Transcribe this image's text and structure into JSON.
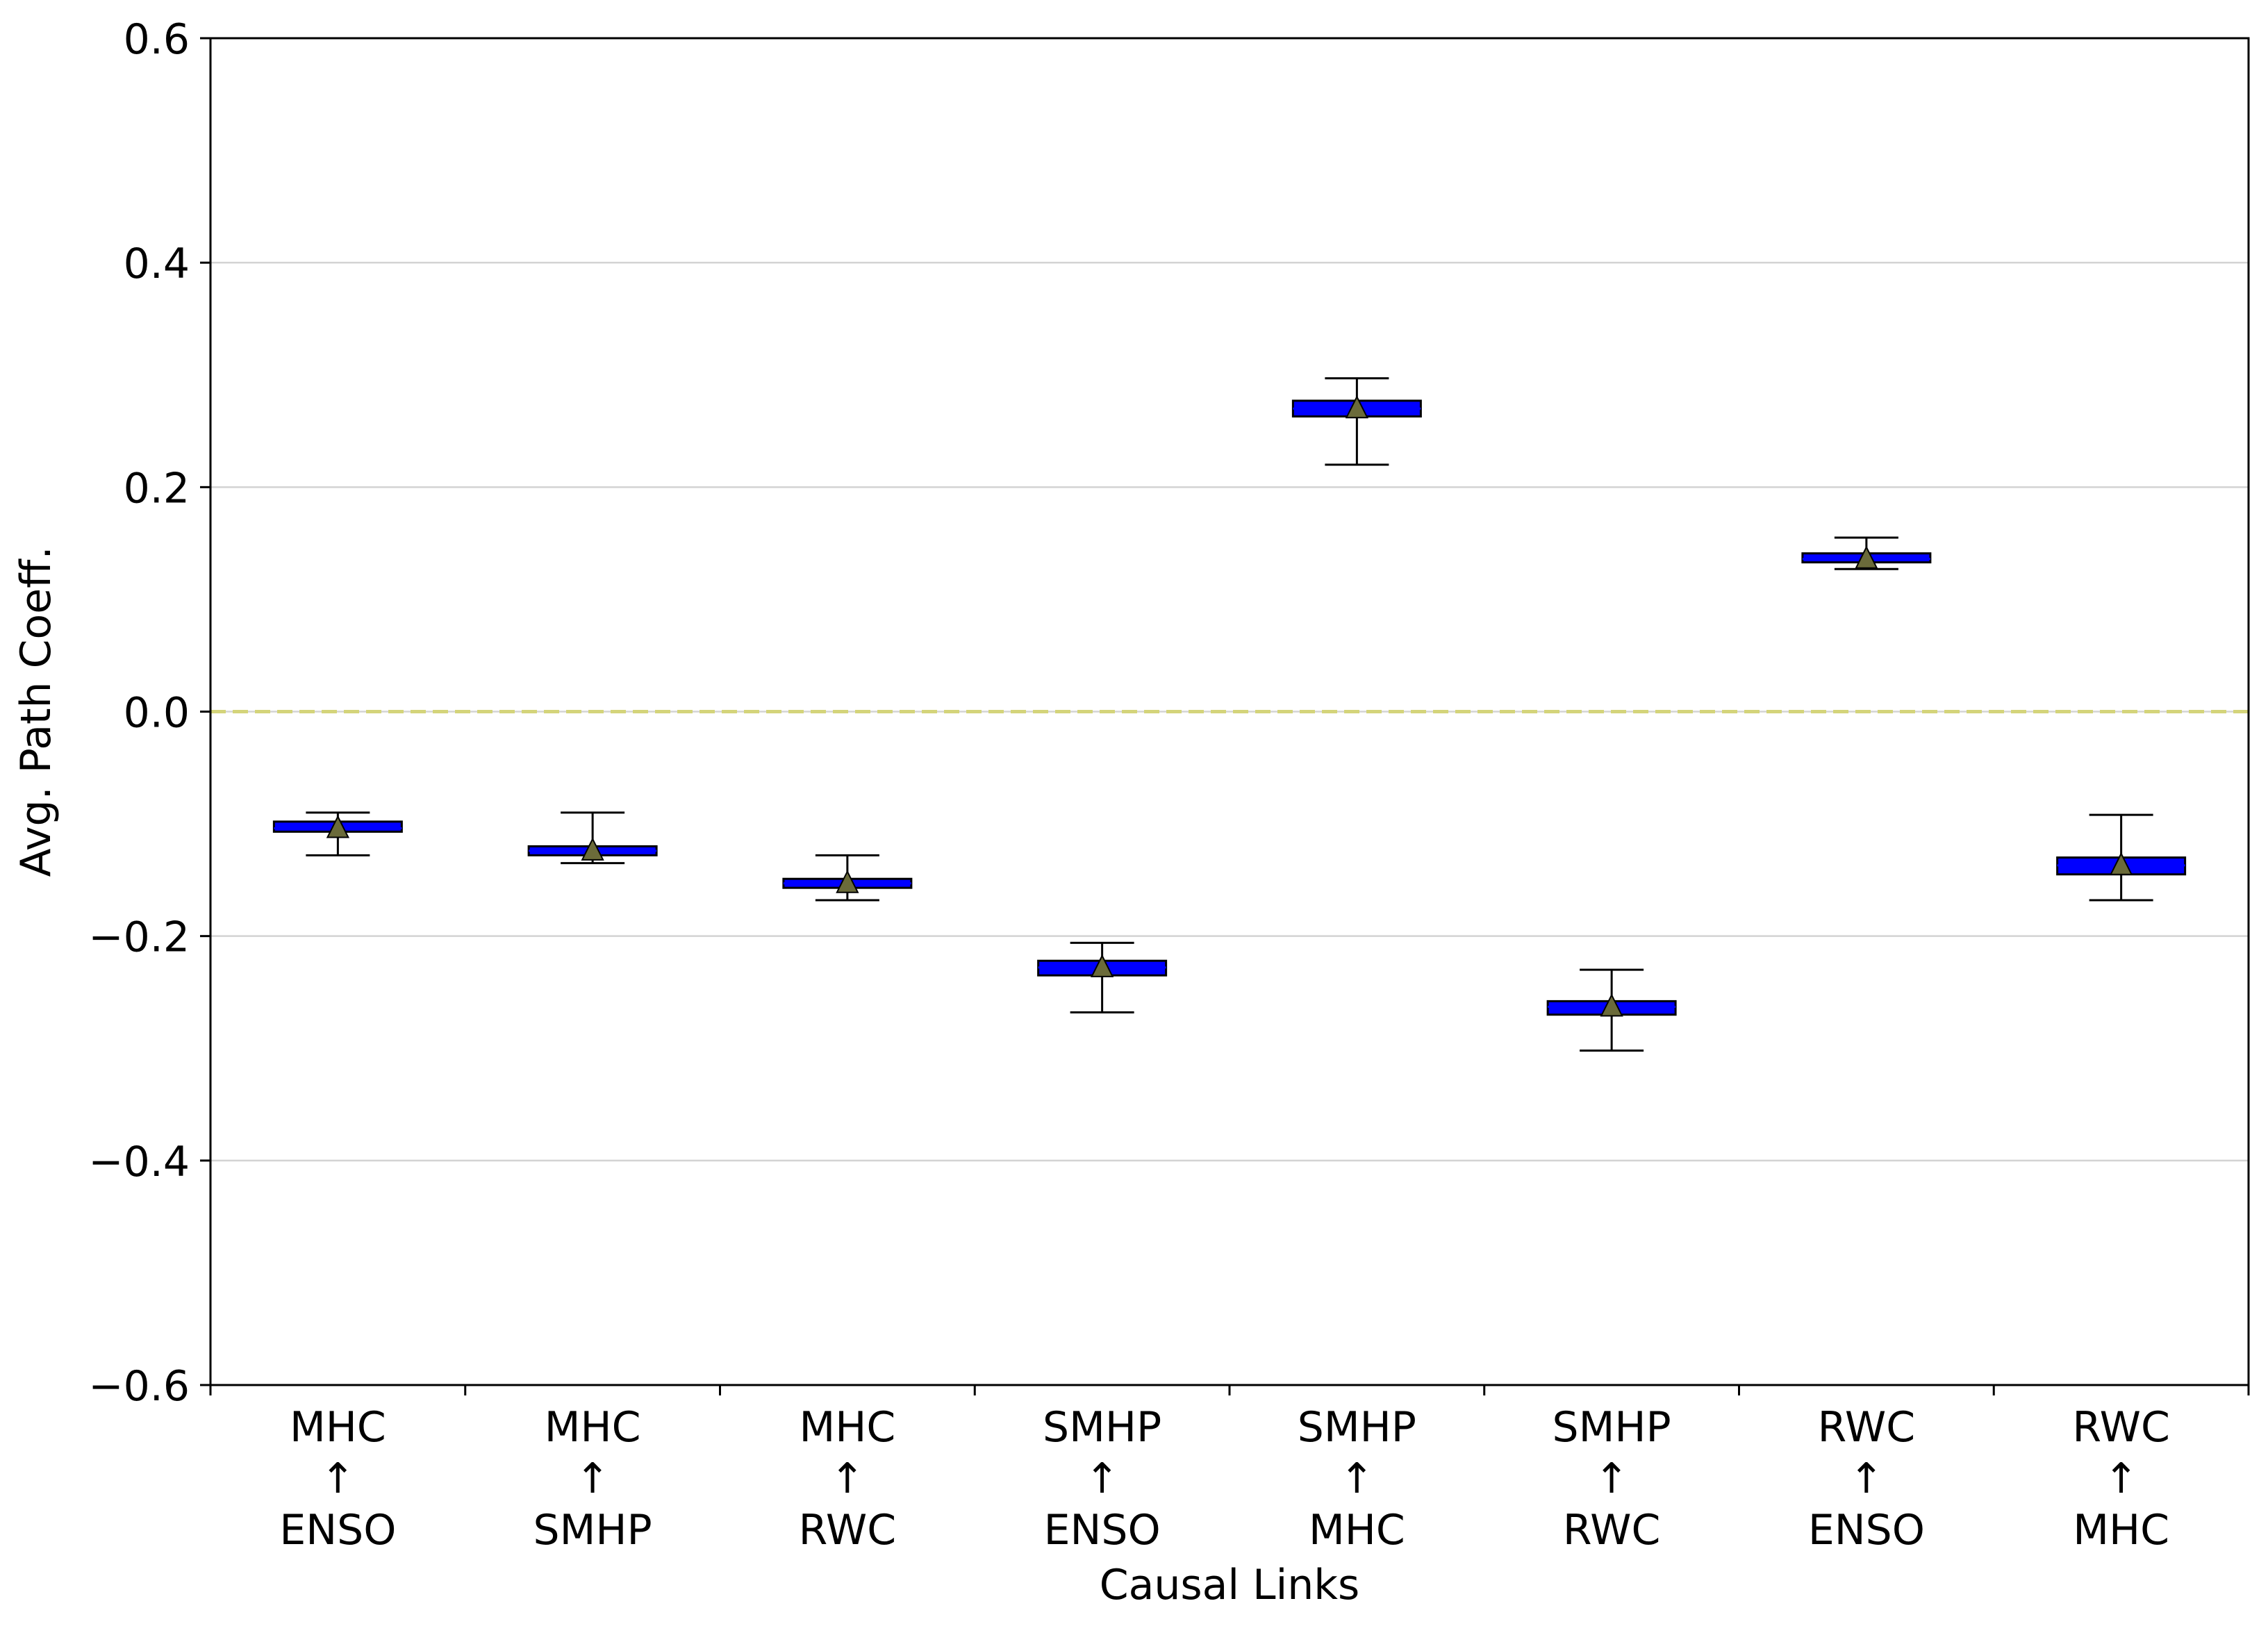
{
  "chart_data": {
    "type": "box",
    "title": "",
    "xlabel": "Causal Links",
    "ylabel": "Avg. Path Coeff.",
    "ylim": [
      -0.6,
      0.6
    ],
    "yticks": [
      -0.6,
      -0.4,
      -0.2,
      0.0,
      0.2,
      0.4,
      0.6
    ],
    "ytick_labels": [
      "−0.6",
      "−0.4",
      "−0.2",
      "0.0",
      "0.2",
      "0.4",
      "0.6"
    ],
    "grid": "horizontal",
    "reference_line": {
      "y": 0.0,
      "style": "dashed",
      "color": "#d4d47a"
    },
    "box_color": "#0000ff",
    "mean_marker_color": "#6b6b3a",
    "categories": [
      {
        "lines": [
          "MHC",
          "↑",
          "ENSO"
        ]
      },
      {
        "lines": [
          "MHC",
          "↑",
          "SMHP"
        ]
      },
      {
        "lines": [
          "MHC",
          "↑",
          "RWC"
        ]
      },
      {
        "lines": [
          "SMHP",
          "↑",
          "ENSO"
        ]
      },
      {
        "lines": [
          "SMHP",
          "↑",
          "MHC"
        ]
      },
      {
        "lines": [
          "SMHP",
          "↑",
          "RWC"
        ]
      },
      {
        "lines": [
          "RWC",
          "↑",
          "ENSO"
        ]
      },
      {
        "lines": [
          "RWC",
          "↑",
          "MHC"
        ]
      }
    ],
    "boxes": [
      {
        "whislo": -0.128,
        "q1": -0.107,
        "med": -0.104,
        "q3": -0.098,
        "whishi": -0.09,
        "mean": -0.104
      },
      {
        "whislo": -0.135,
        "q1": -0.128,
        "med": -0.124,
        "q3": -0.12,
        "whishi": -0.09,
        "mean": -0.124
      },
      {
        "whislo": -0.168,
        "q1": -0.157,
        "med": -0.153,
        "q3": -0.149,
        "whishi": -0.128,
        "mean": -0.153
      },
      {
        "whislo": -0.268,
        "q1": -0.235,
        "med": -0.228,
        "q3": -0.222,
        "whishi": -0.206,
        "mean": -0.228
      },
      {
        "whislo": 0.22,
        "q1": 0.263,
        "med": 0.27,
        "q3": 0.277,
        "whishi": 0.297,
        "mean": 0.27
      },
      {
        "whislo": -0.302,
        "q1": -0.27,
        "med": -0.263,
        "q3": -0.258,
        "whishi": -0.23,
        "mean": -0.263
      },
      {
        "whislo": 0.127,
        "q1": 0.133,
        "med": 0.136,
        "q3": 0.141,
        "whishi": 0.155,
        "mean": 0.136
      },
      {
        "whislo": -0.168,
        "q1": -0.145,
        "med": -0.137,
        "q3": -0.13,
        "whishi": -0.092,
        "mean": -0.137
      }
    ]
  }
}
